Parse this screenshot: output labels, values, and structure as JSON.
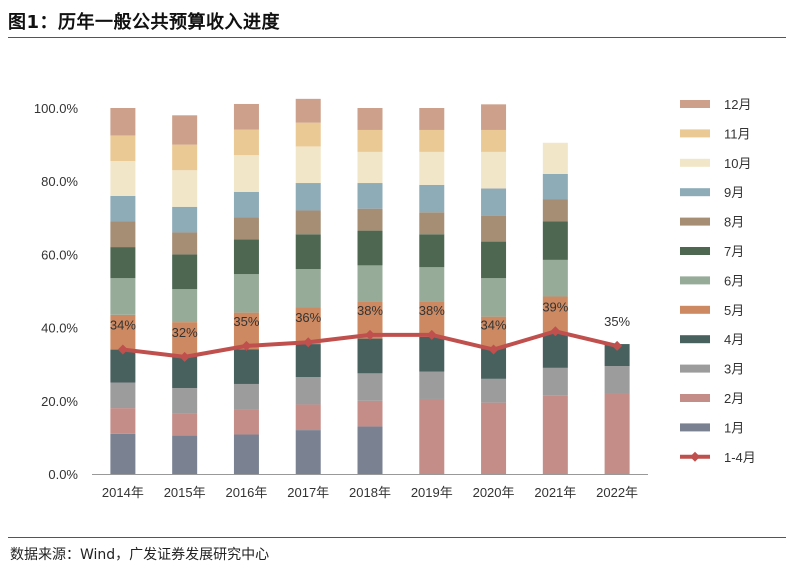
{
  "figure": {
    "title": "图1：历年一般公共预算收入进度",
    "source": "数据来源：Wind，广发证券发展研究中心"
  },
  "chart_data": {
    "type": "bar",
    "stacked": true,
    "categories": [
      "2014年",
      "2015年",
      "2016年",
      "2017年",
      "2018年",
      "2019年",
      "2020年",
      "2021年",
      "2022年"
    ],
    "ylim": [
      0,
      100
    ],
    "yticks": [
      "0.0%",
      "20.0%",
      "40.0%",
      "60.0%",
      "80.0%",
      "100.0%"
    ],
    "ytick_values": [
      0,
      20,
      40,
      60,
      80,
      100
    ],
    "legend_position": "right",
    "series": [
      {
        "name": "1月",
        "color": "#7a8291",
        "values": [
          11,
          10.5,
          10.8,
          12,
          13,
          null,
          null,
          null,
          null
        ]
      },
      {
        "name": "2月",
        "color": "#c48d88",
        "values": [
          7,
          6,
          6.8,
          7,
          7,
          20.5,
          19.5,
          21.5,
          22
        ]
      },
      {
        "name": "3月",
        "color": "#9c9c9c",
        "values": [
          7,
          7,
          7,
          7.5,
          7.5,
          7.5,
          6.5,
          7.5,
          7.5
        ]
      },
      {
        "name": "4月",
        "color": "#48615e",
        "values": [
          9,
          9,
          9.5,
          9,
          9.5,
          9.5,
          8.5,
          9.5,
          6
        ]
      },
      {
        "name": "5月",
        "color": "#cd8a62",
        "values": [
          9.5,
          9,
          10,
          10,
          10,
          9.5,
          8.5,
          10,
          null
        ]
      },
      {
        "name": "6月",
        "color": "#96ab98",
        "values": [
          10,
          9,
          10.5,
          10.5,
          10,
          9.5,
          10.5,
          10,
          null
        ]
      },
      {
        "name": "7月",
        "color": "#4d6751",
        "values": [
          8.5,
          9.5,
          9.5,
          9.5,
          9.5,
          9,
          10,
          10.5,
          null
        ]
      },
      {
        "name": "8月",
        "color": "#a68e74",
        "values": [
          7,
          6,
          6,
          6.5,
          6,
          6,
          7,
          6,
          null
        ]
      },
      {
        "name": "9月",
        "color": "#8eabb8",
        "values": [
          7,
          7,
          7,
          7.5,
          7,
          7.5,
          7.5,
          7,
          null
        ]
      },
      {
        "name": "10月",
        "color": "#f2e6c8",
        "values": [
          9.5,
          10,
          10,
          10,
          8.5,
          9,
          10,
          8.5,
          null
        ]
      },
      {
        "name": "11月",
        "color": "#ebc995",
        "values": [
          7,
          7,
          7,
          6.5,
          6,
          6,
          6,
          null,
          null
        ]
      },
      {
        "name": "12月",
        "color": "#cca08a",
        "values": [
          7.5,
          8,
          7,
          6.5,
          6,
          6,
          7,
          null,
          null
        ]
      }
    ],
    "line_series": {
      "name": "1-4月",
      "color": "#c0504d",
      "values": [
        34,
        32,
        35,
        36,
        38,
        38,
        34,
        39,
        35
      ],
      "labels": [
        "34%",
        "32%",
        "35%",
        "36%",
        "38%",
        "38%",
        "34%",
        "39%",
        "35%"
      ]
    }
  }
}
